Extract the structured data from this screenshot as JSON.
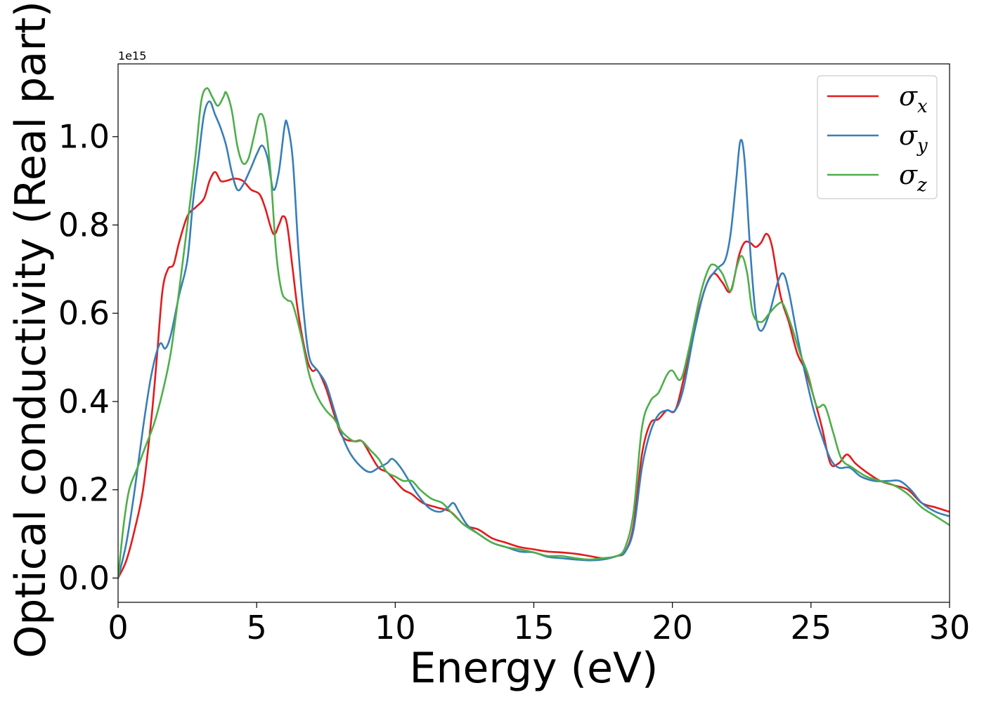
{
  "chart_data": {
    "type": "line",
    "xlabel": "Energy (eV)",
    "ylabel": "Optical conductivity (Real part)",
    "y_offset_label": "1e15",
    "xlim": [
      0,
      30
    ],
    "ylim": [
      -0.055,
      1.165
    ],
    "x_ticks": [
      0,
      5,
      10,
      15,
      20,
      25,
      30
    ],
    "x_tick_labels": [
      "0",
      "5",
      "10",
      "15",
      "20",
      "25",
      "30"
    ],
    "y_ticks": [
      0.0,
      0.2,
      0.4,
      0.6,
      0.8,
      1.0
    ],
    "y_tick_labels": [
      "0.0",
      "0.2",
      "0.4",
      "0.6",
      "0.8",
      "1.0"
    ],
    "grid": false,
    "legend_position": "top-right",
    "series": [
      {
        "name": "σx",
        "name_base": "σ",
        "name_sub": "x",
        "color": "#e41a1c",
        "points": [
          [
            0,
            0.0
          ],
          [
            0.3,
            0.04
          ],
          [
            0.6,
            0.11
          ],
          [
            0.9,
            0.2
          ],
          [
            1.2,
            0.36
          ],
          [
            1.4,
            0.5
          ],
          [
            1.6,
            0.65
          ],
          [
            1.8,
            0.7
          ],
          [
            2.0,
            0.71
          ],
          [
            2.2,
            0.76
          ],
          [
            2.5,
            0.82
          ],
          [
            2.8,
            0.84
          ],
          [
            3.1,
            0.86
          ],
          [
            3.3,
            0.9
          ],
          [
            3.5,
            0.92
          ],
          [
            3.7,
            0.9
          ],
          [
            3.9,
            0.9
          ],
          [
            4.2,
            0.905
          ],
          [
            4.5,
            0.9
          ],
          [
            4.8,
            0.88
          ],
          [
            5.1,
            0.87
          ],
          [
            5.3,
            0.84
          ],
          [
            5.6,
            0.78
          ],
          [
            5.8,
            0.8
          ],
          [
            5.95,
            0.82
          ],
          [
            6.1,
            0.8
          ],
          [
            6.3,
            0.7
          ],
          [
            6.5,
            0.6
          ],
          [
            6.8,
            0.5
          ],
          [
            7.0,
            0.47
          ],
          [
            7.2,
            0.47
          ],
          [
            7.5,
            0.43
          ],
          [
            7.8,
            0.37
          ],
          [
            8.1,
            0.32
          ],
          [
            8.5,
            0.31
          ],
          [
            8.8,
            0.31
          ],
          [
            9.1,
            0.28
          ],
          [
            9.4,
            0.25
          ],
          [
            9.7,
            0.24
          ],
          [
            10.0,
            0.22
          ],
          [
            10.3,
            0.2
          ],
          [
            10.6,
            0.19
          ],
          [
            11.0,
            0.17
          ],
          [
            11.5,
            0.16
          ],
          [
            12.0,
            0.15
          ],
          [
            12.5,
            0.12
          ],
          [
            13.0,
            0.11
          ],
          [
            13.5,
            0.09
          ],
          [
            14.0,
            0.08
          ],
          [
            14.5,
            0.07
          ],
          [
            15.0,
            0.065
          ],
          [
            15.5,
            0.06
          ],
          [
            16.0,
            0.058
          ],
          [
            16.5,
            0.055
          ],
          [
            17.0,
            0.05
          ],
          [
            17.5,
            0.045
          ],
          [
            18.0,
            0.05
          ],
          [
            18.3,
            0.06
          ],
          [
            18.6,
            0.12
          ],
          [
            18.9,
            0.28
          ],
          [
            19.2,
            0.35
          ],
          [
            19.5,
            0.36
          ],
          [
            19.8,
            0.38
          ],
          [
            20.1,
            0.38
          ],
          [
            20.4,
            0.45
          ],
          [
            20.8,
            0.57
          ],
          [
            21.2,
            0.66
          ],
          [
            21.5,
            0.69
          ],
          [
            21.8,
            0.67
          ],
          [
            22.1,
            0.65
          ],
          [
            22.4,
            0.73
          ],
          [
            22.6,
            0.76
          ],
          [
            22.8,
            0.76
          ],
          [
            23.0,
            0.75
          ],
          [
            23.2,
            0.76
          ],
          [
            23.4,
            0.78
          ],
          [
            23.6,
            0.75
          ],
          [
            23.9,
            0.64
          ],
          [
            24.2,
            0.58
          ],
          [
            24.5,
            0.51
          ],
          [
            24.8,
            0.47
          ],
          [
            25.1,
            0.41
          ],
          [
            25.4,
            0.34
          ],
          [
            25.7,
            0.26
          ],
          [
            26.0,
            0.26
          ],
          [
            26.3,
            0.28
          ],
          [
            26.6,
            0.26
          ],
          [
            27.0,
            0.24
          ],
          [
            27.5,
            0.22
          ],
          [
            28.0,
            0.21
          ],
          [
            28.5,
            0.2
          ],
          [
            29.0,
            0.17
          ],
          [
            29.5,
            0.16
          ],
          [
            30.0,
            0.15
          ]
        ]
      },
      {
        "name": "σy",
        "name_base": "σ",
        "name_sub": "y",
        "color": "#377eb8",
        "points": [
          [
            0,
            0.0
          ],
          [
            0.3,
            0.08
          ],
          [
            0.6,
            0.2
          ],
          [
            0.9,
            0.34
          ],
          [
            1.2,
            0.46
          ],
          [
            1.5,
            0.53
          ],
          [
            1.7,
            0.52
          ],
          [
            1.9,
            0.55
          ],
          [
            2.2,
            0.64
          ],
          [
            2.5,
            0.72
          ],
          [
            2.7,
            0.85
          ],
          [
            2.9,
            0.95
          ],
          [
            3.1,
            1.05
          ],
          [
            3.3,
            1.08
          ],
          [
            3.5,
            1.05
          ],
          [
            3.7,
            1.02
          ],
          [
            3.9,
            0.98
          ],
          [
            4.1,
            0.92
          ],
          [
            4.3,
            0.88
          ],
          [
            4.5,
            0.89
          ],
          [
            4.8,
            0.93
          ],
          [
            5.0,
            0.96
          ],
          [
            5.2,
            0.98
          ],
          [
            5.4,
            0.95
          ],
          [
            5.6,
            0.88
          ],
          [
            5.8,
            0.92
          ],
          [
            6.0,
            1.02
          ],
          [
            6.1,
            1.03
          ],
          [
            6.3,
            0.95
          ],
          [
            6.5,
            0.75
          ],
          [
            6.7,
            0.6
          ],
          [
            6.9,
            0.5
          ],
          [
            7.2,
            0.47
          ],
          [
            7.5,
            0.44
          ],
          [
            7.8,
            0.38
          ],
          [
            8.1,
            0.32
          ],
          [
            8.4,
            0.28
          ],
          [
            8.8,
            0.25
          ],
          [
            9.1,
            0.24
          ],
          [
            9.4,
            0.25
          ],
          [
            9.7,
            0.26
          ],
          [
            9.9,
            0.27
          ],
          [
            10.2,
            0.25
          ],
          [
            10.5,
            0.22
          ],
          [
            10.8,
            0.19
          ],
          [
            11.2,
            0.16
          ],
          [
            11.6,
            0.15
          ],
          [
            11.9,
            0.16
          ],
          [
            12.1,
            0.17
          ],
          [
            12.3,
            0.15
          ],
          [
            12.6,
            0.12
          ],
          [
            13.0,
            0.1
          ],
          [
            13.5,
            0.08
          ],
          [
            14.0,
            0.07
          ],
          [
            14.5,
            0.06
          ],
          [
            15.0,
            0.058
          ],
          [
            15.5,
            0.048
          ],
          [
            16.0,
            0.045
          ],
          [
            16.5,
            0.042
          ],
          [
            17.0,
            0.04
          ],
          [
            17.5,
            0.042
          ],
          [
            18.0,
            0.05
          ],
          [
            18.3,
            0.06
          ],
          [
            18.6,
            0.11
          ],
          [
            18.9,
            0.25
          ],
          [
            19.2,
            0.33
          ],
          [
            19.5,
            0.37
          ],
          [
            19.8,
            0.38
          ],
          [
            20.1,
            0.38
          ],
          [
            20.4,
            0.43
          ],
          [
            20.8,
            0.56
          ],
          [
            21.2,
            0.66
          ],
          [
            21.6,
            0.7
          ],
          [
            21.9,
            0.72
          ],
          [
            22.1,
            0.78
          ],
          [
            22.3,
            0.9
          ],
          [
            22.45,
            0.99
          ],
          [
            22.6,
            0.95
          ],
          [
            22.8,
            0.75
          ],
          [
            23.0,
            0.6
          ],
          [
            23.2,
            0.56
          ],
          [
            23.5,
            0.6
          ],
          [
            23.8,
            0.67
          ],
          [
            24.0,
            0.69
          ],
          [
            24.2,
            0.65
          ],
          [
            24.5,
            0.55
          ],
          [
            24.8,
            0.46
          ],
          [
            25.1,
            0.38
          ],
          [
            25.4,
            0.32
          ],
          [
            25.7,
            0.27
          ],
          [
            26.0,
            0.25
          ],
          [
            26.4,
            0.25
          ],
          [
            26.8,
            0.23
          ],
          [
            27.3,
            0.22
          ],
          [
            27.8,
            0.22
          ],
          [
            28.2,
            0.22
          ],
          [
            28.6,
            0.2
          ],
          [
            29.0,
            0.17
          ],
          [
            29.5,
            0.15
          ],
          [
            30.0,
            0.14
          ]
        ]
      },
      {
        "name": "σz",
        "name_base": "σ",
        "name_sub": "z",
        "color": "#4daf4a",
        "points": [
          [
            0,
            0.0
          ],
          [
            0.2,
            0.12
          ],
          [
            0.4,
            0.2
          ],
          [
            0.7,
            0.25
          ],
          [
            1.0,
            0.3
          ],
          [
            1.3,
            0.35
          ],
          [
            1.6,
            0.42
          ],
          [
            1.9,
            0.51
          ],
          [
            2.2,
            0.65
          ],
          [
            2.5,
            0.8
          ],
          [
            2.8,
            0.96
          ],
          [
            3.0,
            1.08
          ],
          [
            3.2,
            1.11
          ],
          [
            3.4,
            1.09
          ],
          [
            3.6,
            1.07
          ],
          [
            3.8,
            1.09
          ],
          [
            3.9,
            1.1
          ],
          [
            4.1,
            1.06
          ],
          [
            4.3,
            0.98
          ],
          [
            4.5,
            0.94
          ],
          [
            4.7,
            0.95
          ],
          [
            4.9,
            1.0
          ],
          [
            5.1,
            1.05
          ],
          [
            5.3,
            1.03
          ],
          [
            5.5,
            0.92
          ],
          [
            5.7,
            0.74
          ],
          [
            5.9,
            0.65
          ],
          [
            6.1,
            0.63
          ],
          [
            6.3,
            0.62
          ],
          [
            6.6,
            0.55
          ],
          [
            6.9,
            0.46
          ],
          [
            7.2,
            0.41
          ],
          [
            7.5,
            0.38
          ],
          [
            7.8,
            0.36
          ],
          [
            8.1,
            0.33
          ],
          [
            8.5,
            0.31
          ],
          [
            8.8,
            0.31
          ],
          [
            9.1,
            0.29
          ],
          [
            9.4,
            0.27
          ],
          [
            9.7,
            0.24
          ],
          [
            10.0,
            0.23
          ],
          [
            10.3,
            0.22
          ],
          [
            10.6,
            0.22
          ],
          [
            10.9,
            0.2
          ],
          [
            11.3,
            0.18
          ],
          [
            11.7,
            0.17
          ],
          [
            12.0,
            0.15
          ],
          [
            12.5,
            0.12
          ],
          [
            13.0,
            0.1
          ],
          [
            13.5,
            0.08
          ],
          [
            14.0,
            0.07
          ],
          [
            14.5,
            0.065
          ],
          [
            15.0,
            0.058
          ],
          [
            15.5,
            0.05
          ],
          [
            16.0,
            0.05
          ],
          [
            16.5,
            0.045
          ],
          [
            17.0,
            0.042
          ],
          [
            17.5,
            0.045
          ],
          [
            18.0,
            0.05
          ],
          [
            18.3,
            0.07
          ],
          [
            18.6,
            0.15
          ],
          [
            18.9,
            0.34
          ],
          [
            19.2,
            0.4
          ],
          [
            19.5,
            0.42
          ],
          [
            19.8,
            0.46
          ],
          [
            20.0,
            0.47
          ],
          [
            20.3,
            0.45
          ],
          [
            20.6,
            0.52
          ],
          [
            21.0,
            0.64
          ],
          [
            21.3,
            0.7
          ],
          [
            21.5,
            0.71
          ],
          [
            21.8,
            0.69
          ],
          [
            22.1,
            0.65
          ],
          [
            22.3,
            0.7
          ],
          [
            22.5,
            0.73
          ],
          [
            22.7,
            0.69
          ],
          [
            22.9,
            0.6
          ],
          [
            23.2,
            0.58
          ],
          [
            23.5,
            0.6
          ],
          [
            23.8,
            0.62
          ],
          [
            24.0,
            0.62
          ],
          [
            24.3,
            0.57
          ],
          [
            24.6,
            0.51
          ],
          [
            24.9,
            0.46
          ],
          [
            25.2,
            0.39
          ],
          [
            25.5,
            0.39
          ],
          [
            25.8,
            0.33
          ],
          [
            26.1,
            0.27
          ],
          [
            26.5,
            0.25
          ],
          [
            27.0,
            0.23
          ],
          [
            27.5,
            0.22
          ],
          [
            28.0,
            0.21
          ],
          [
            28.5,
            0.19
          ],
          [
            29.0,
            0.16
          ],
          [
            29.5,
            0.14
          ],
          [
            30.0,
            0.12
          ]
        ]
      }
    ]
  }
}
